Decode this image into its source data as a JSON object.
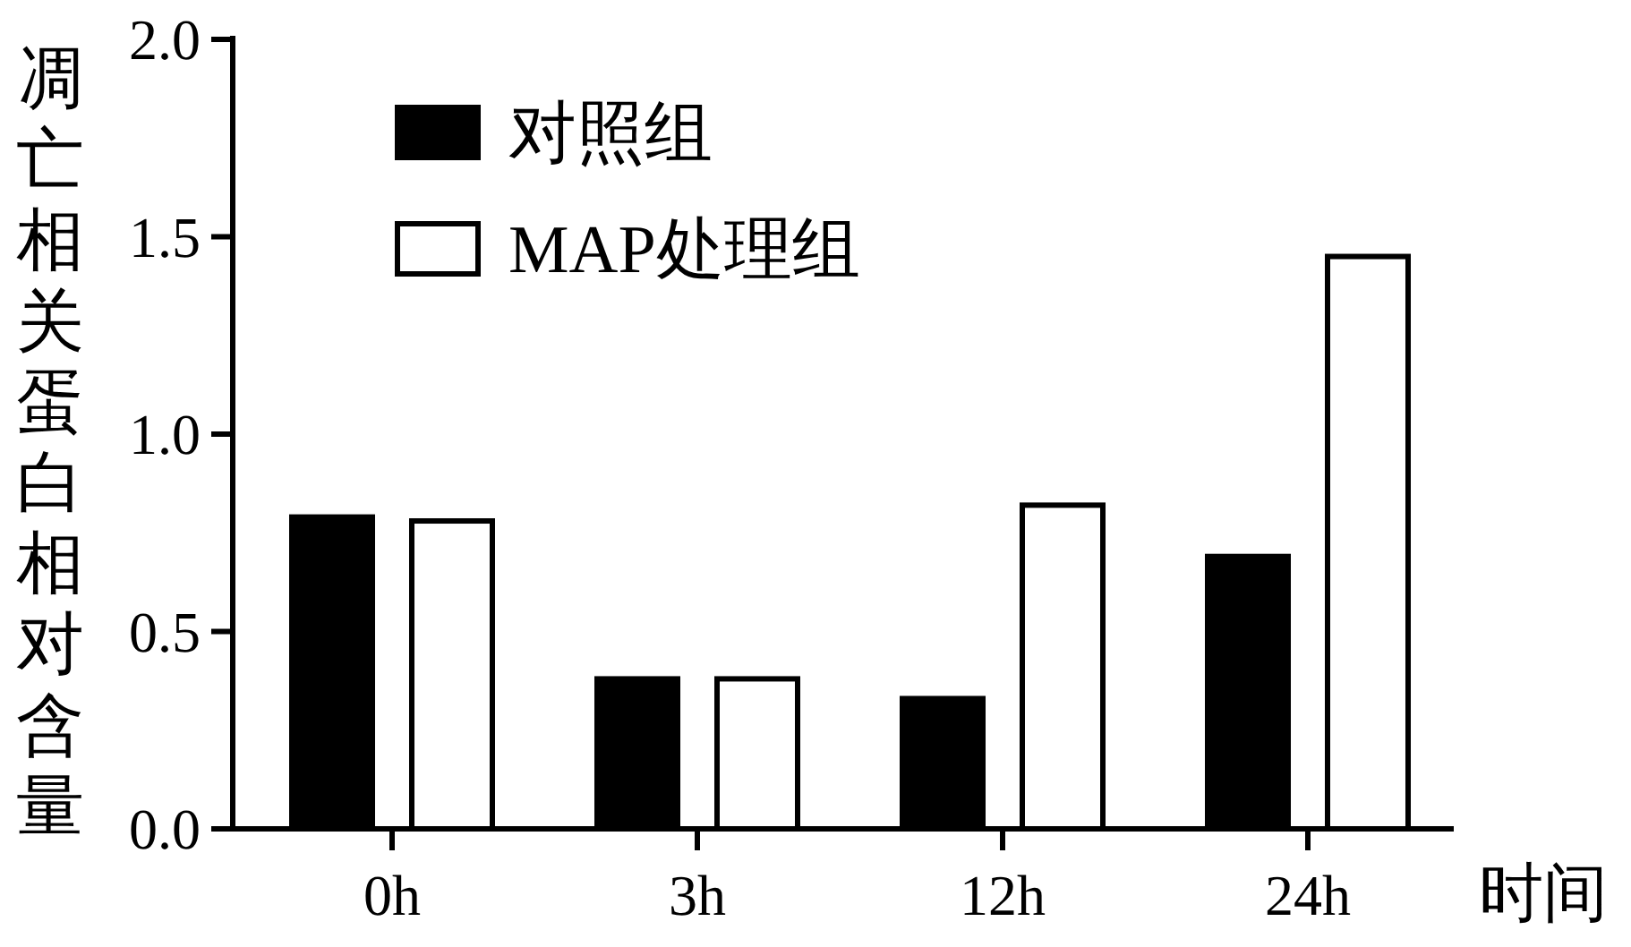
{
  "chart_data": {
    "type": "bar",
    "ylabel": "凋亡相关蛋白相对含量",
    "xlabel": "时间",
    "categories": [
      "0h",
      "3h",
      "12h",
      "24h"
    ],
    "series": [
      {
        "name": "对照组",
        "color": "#000000",
        "values": [
          0.79,
          0.38,
          0.33,
          0.69
        ]
      },
      {
        "name": "MAP处理组",
        "color": "#ffffff",
        "values": [
          0.78,
          0.38,
          0.82,
          1.45
        ]
      }
    ],
    "ylim": [
      0,
      2.0
    ],
    "yticks": [
      {
        "value": 0,
        "label": "0.0"
      },
      {
        "value": 0.5,
        "label": "0.5"
      },
      {
        "value": 1,
        "label": "1.0"
      },
      {
        "value": 1.5,
        "label": "1.5"
      },
      {
        "value": 2,
        "label": "2.0"
      }
    ],
    "grid": false,
    "legend": "top left"
  }
}
